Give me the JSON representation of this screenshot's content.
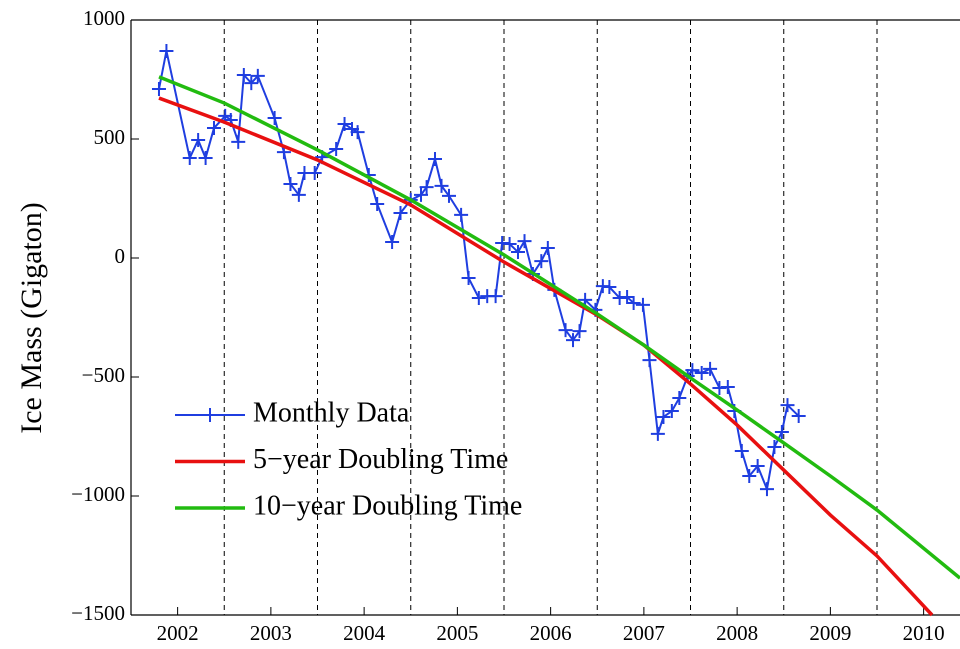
{
  "chart_data": {
    "type": "line",
    "y_label": "Ice Mass (Gigaton)",
    "xlim": [
      2002,
      2010.89
    ],
    "ylim": [
      -1500,
      1000
    ],
    "xticks": [
      {
        "value": 2002.5,
        "label": "2002"
      },
      {
        "value": 2003.5,
        "label": "2003"
      },
      {
        "value": 2004.5,
        "label": "2004"
      },
      {
        "value": 2005.5,
        "label": "2005"
      },
      {
        "value": 2006.5,
        "label": "2006"
      },
      {
        "value": 2007.5,
        "label": "2007"
      },
      {
        "value": 2008.5,
        "label": "2008"
      },
      {
        "value": 2009.5,
        "label": "2009"
      },
      {
        "value": 2010.5,
        "label": "2010"
      }
    ],
    "yticks": [
      {
        "value": -1500,
        "label": "−1500"
      },
      {
        "value": -1000,
        "label": "−1000"
      },
      {
        "value": -500,
        "label": "−500"
      },
      0,
      500,
      1000
    ],
    "x_grid": [
      2003,
      2004,
      2005,
      2006,
      2007,
      2008,
      2009,
      2010
    ],
    "legend": "lower left",
    "series": [
      {
        "name": "Monthly Data",
        "color": "#1f3ee0",
        "marker": "+",
        "x": [
          2002.3,
          2002.38,
          2002.63,
          2002.72,
          2002.8,
          2002.89,
          2003.01,
          2003.07,
          2003.15,
          2003.21,
          2003.29,
          2003.36,
          2003.54,
          2003.64,
          2003.71,
          2003.8,
          2003.86,
          2003.97,
          2004.05,
          2004.2,
          2004.29,
          2004.37,
          2004.43,
          2004.55,
          2004.64,
          2004.8,
          2004.89,
          2005.0,
          2005.11,
          2005.17,
          2005.26,
          2005.33,
          2005.41,
          2005.54,
          2005.62,
          2005.73,
          2005.82,
          2005.91,
          2005.98,
          2006.06,
          2006.15,
          2006.22,
          2006.31,
          2006.4,
          2006.47,
          2006.54,
          2006.66,
          2006.74,
          2006.81,
          2006.87,
          2006.98,
          2007.06,
          2007.13,
          2007.24,
          2007.32,
          2007.39,
          2007.49,
          2007.56,
          2007.65,
          2007.71,
          2007.8,
          2007.88,
          2007.97,
          2008.02,
          2008.12,
          2008.21,
          2008.31,
          2008.4,
          2008.47,
          2008.55,
          2008.63,
          2008.72,
          2008.82,
          2008.9,
          2008.98,
          2009.04,
          2009.16
        ],
        "values": [
          710,
          870,
          420,
          496,
          420,
          546,
          597,
          580,
          488,
          769,
          735,
          765,
          588,
          445,
          311,
          265,
          357,
          357,
          424,
          458,
          563,
          542,
          529,
          349,
          227,
          67,
          189,
          244,
          265,
          298,
          416,
          303,
          261,
          181,
          -84,
          -168,
          -160,
          -160,
          63,
          59,
          25,
          71,
          -67,
          -13,
          42,
          -134,
          -303,
          -345,
          -307,
          -176,
          -218,
          -118,
          -122,
          -168,
          -164,
          -189,
          -197,
          -429,
          -739,
          -668,
          -643,
          -588,
          -496,
          -471,
          -483,
          -466,
          -546,
          -542,
          -643,
          -811,
          -916,
          -874,
          -971,
          -794,
          -731,
          -618,
          -664
        ]
      },
      {
        "name": "5−year Doubling Time",
        "color": "#e81010",
        "x": [
          2002.3,
          2003,
          2004,
          2005,
          2006,
          2007,
          2007.5,
          2008,
          2008.5,
          2009,
          2009.5,
          2010,
          2010.59
        ],
        "values": [
          672,
          571,
          412,
          223,
          -17,
          -240,
          -366,
          -529,
          -702,
          -891,
          -1080,
          -1252,
          -1500
        ]
      },
      {
        "name": "10−year Doubling Time",
        "color": "#22bb10",
        "x": [
          2002.3,
          2003,
          2004,
          2005,
          2006,
          2007,
          2007.5,
          2008,
          2008.5,
          2009,
          2009.5,
          2010,
          2010.89
        ],
        "values": [
          761,
          651,
          454,
          244,
          13,
          -235,
          -366,
          -504,
          -639,
          -777,
          -916,
          -1059,
          -1345
        ]
      }
    ]
  }
}
